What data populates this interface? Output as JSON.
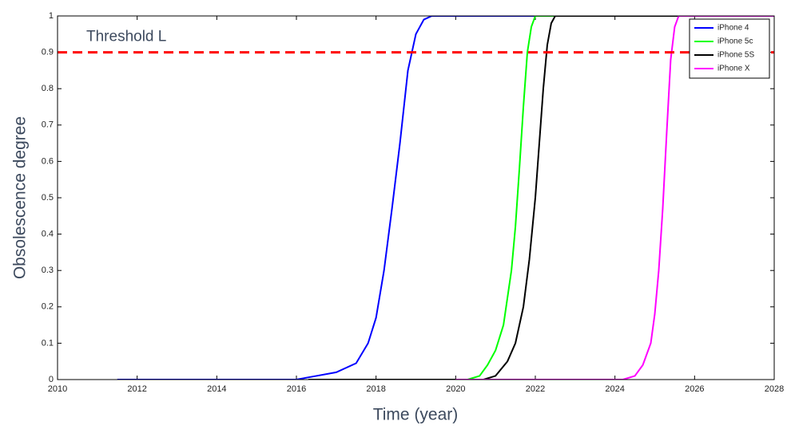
{
  "chart_data": {
    "type": "line",
    "xlabel": "Time (year)",
    "ylabel": "Obsolescence degree",
    "xlim": [
      2010,
      2028
    ],
    "xticks": [
      2010,
      2012,
      2014,
      2016,
      2018,
      2020,
      2022,
      2024,
      2026,
      2028
    ],
    "ylim": [
      0,
      1
    ],
    "yticks": [
      0,
      0.1,
      0.2,
      0.3,
      0.4,
      0.5,
      0.6,
      0.7,
      0.8,
      0.9,
      1
    ],
    "legend": "top-right",
    "threshold": {
      "label": "Threshold L",
      "value": 0.9,
      "color": "#ff0000"
    },
    "series": [
      {
        "name": "iPhone 4",
        "color": "#0000ff",
        "x": [
          2011.5,
          2016,
          2016.5,
          2017,
          2017.5,
          2017.8,
          2018,
          2018.2,
          2018.4,
          2018.6,
          2018.8,
          2019,
          2019.2,
          2019.4,
          2028
        ],
        "values": [
          0,
          0,
          0.01,
          0.02,
          0.045,
          0.1,
          0.17,
          0.3,
          0.47,
          0.65,
          0.85,
          0.95,
          0.99,
          1,
          1
        ]
      },
      {
        "name": "iPhone 5c",
        "color": "#00ff00",
        "x": [
          2016.3,
          2020.3,
          2020.6,
          2020.8,
          2021,
          2021.2,
          2021.4,
          2021.5,
          2021.6,
          2021.7,
          2021.8,
          2021.9,
          2022,
          2028
        ],
        "values": [
          0,
          0,
          0.01,
          0.04,
          0.08,
          0.15,
          0.3,
          0.42,
          0.58,
          0.75,
          0.9,
          0.97,
          1,
          1
        ]
      },
      {
        "name": "iPhone 5S",
        "color": "#000000",
        "x": [
          2016.3,
          2020.7,
          2021,
          2021.3,
          2021.5,
          2021.7,
          2021.85,
          2022,
          2022.1,
          2022.2,
          2022.3,
          2022.4,
          2022.5,
          2028
        ],
        "values": [
          0,
          0,
          0.01,
          0.05,
          0.1,
          0.2,
          0.33,
          0.5,
          0.65,
          0.8,
          0.92,
          0.98,
          1,
          1
        ]
      },
      {
        "name": "iPhone X",
        "color": "#ff00ff",
        "x": [
          2020,
          2024.2,
          2024.5,
          2024.7,
          2024.9,
          2025,
          2025.1,
          2025.2,
          2025.3,
          2025.4,
          2025.5,
          2025.6,
          2028
        ],
        "values": [
          0,
          0,
          0.01,
          0.04,
          0.1,
          0.18,
          0.3,
          0.47,
          0.68,
          0.88,
          0.97,
          1,
          1
        ]
      }
    ]
  }
}
